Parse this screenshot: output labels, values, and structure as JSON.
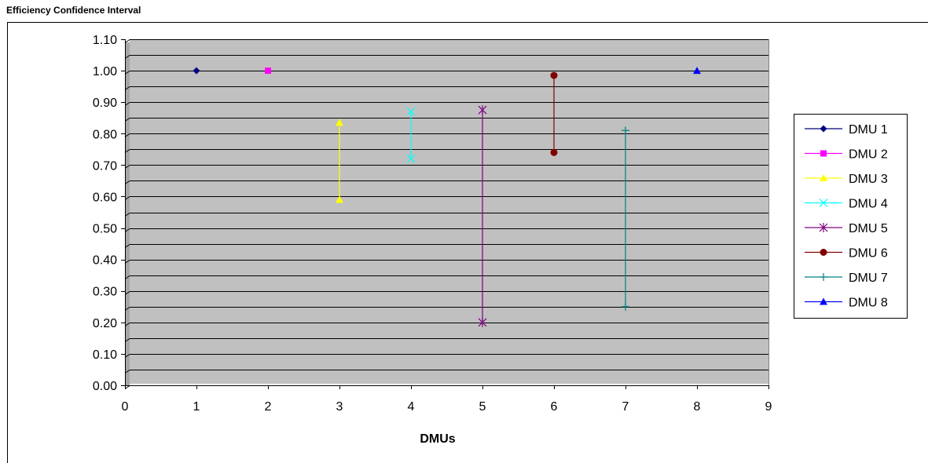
{
  "chart_data": {
    "type": "scatter",
    "title": "Efficiency Confidence Interval",
    "xlabel": "DMUs",
    "ylabel": "",
    "xlim": [
      0,
      9
    ],
    "ylim": [
      0,
      1.1
    ],
    "x_ticks": [
      "0",
      "1",
      "2",
      "3",
      "4",
      "5",
      "6",
      "7",
      "8",
      "9"
    ],
    "y_ticks": [
      "0.00",
      "0.10",
      "0.20",
      "0.30",
      "0.40",
      "0.50",
      "0.60",
      "0.70",
      "0.80",
      "0.90",
      "1.00",
      "1.10"
    ],
    "grid": true,
    "plot_background": "#c0c0c0",
    "legend_position": "right",
    "series": [
      {
        "name": "DMU 1",
        "color": "#000080",
        "marker": "diamond",
        "points": [
          [
            1,
            1.0
          ]
        ]
      },
      {
        "name": "DMU 2",
        "color": "#ff00ff",
        "marker": "square",
        "points": [
          [
            2,
            1.0
          ]
        ]
      },
      {
        "name": "DMU 3",
        "color": "#ffff00",
        "marker": "triangle",
        "points": [
          [
            3,
            0.59
          ],
          [
            3,
            0.835
          ]
        ]
      },
      {
        "name": "DMU 4",
        "color": "#00ffff",
        "marker": "x",
        "points": [
          [
            4,
            0.72
          ],
          [
            4,
            0.87
          ]
        ]
      },
      {
        "name": "DMU 5",
        "color": "#800080",
        "marker": "star",
        "points": [
          [
            5,
            0.2
          ],
          [
            5,
            0.875
          ]
        ]
      },
      {
        "name": "DMU 6",
        "color": "#800000",
        "marker": "circle",
        "points": [
          [
            6,
            0.74
          ],
          [
            6,
            0.985
          ]
        ]
      },
      {
        "name": "DMU 7",
        "color": "#008080",
        "marker": "plus",
        "points": [
          [
            7,
            0.25
          ],
          [
            7,
            0.81
          ]
        ]
      },
      {
        "name": "DMU 8",
        "color": "#0000ff",
        "marker": "triangle",
        "points": [
          [
            8,
            1.0
          ]
        ]
      }
    ]
  }
}
